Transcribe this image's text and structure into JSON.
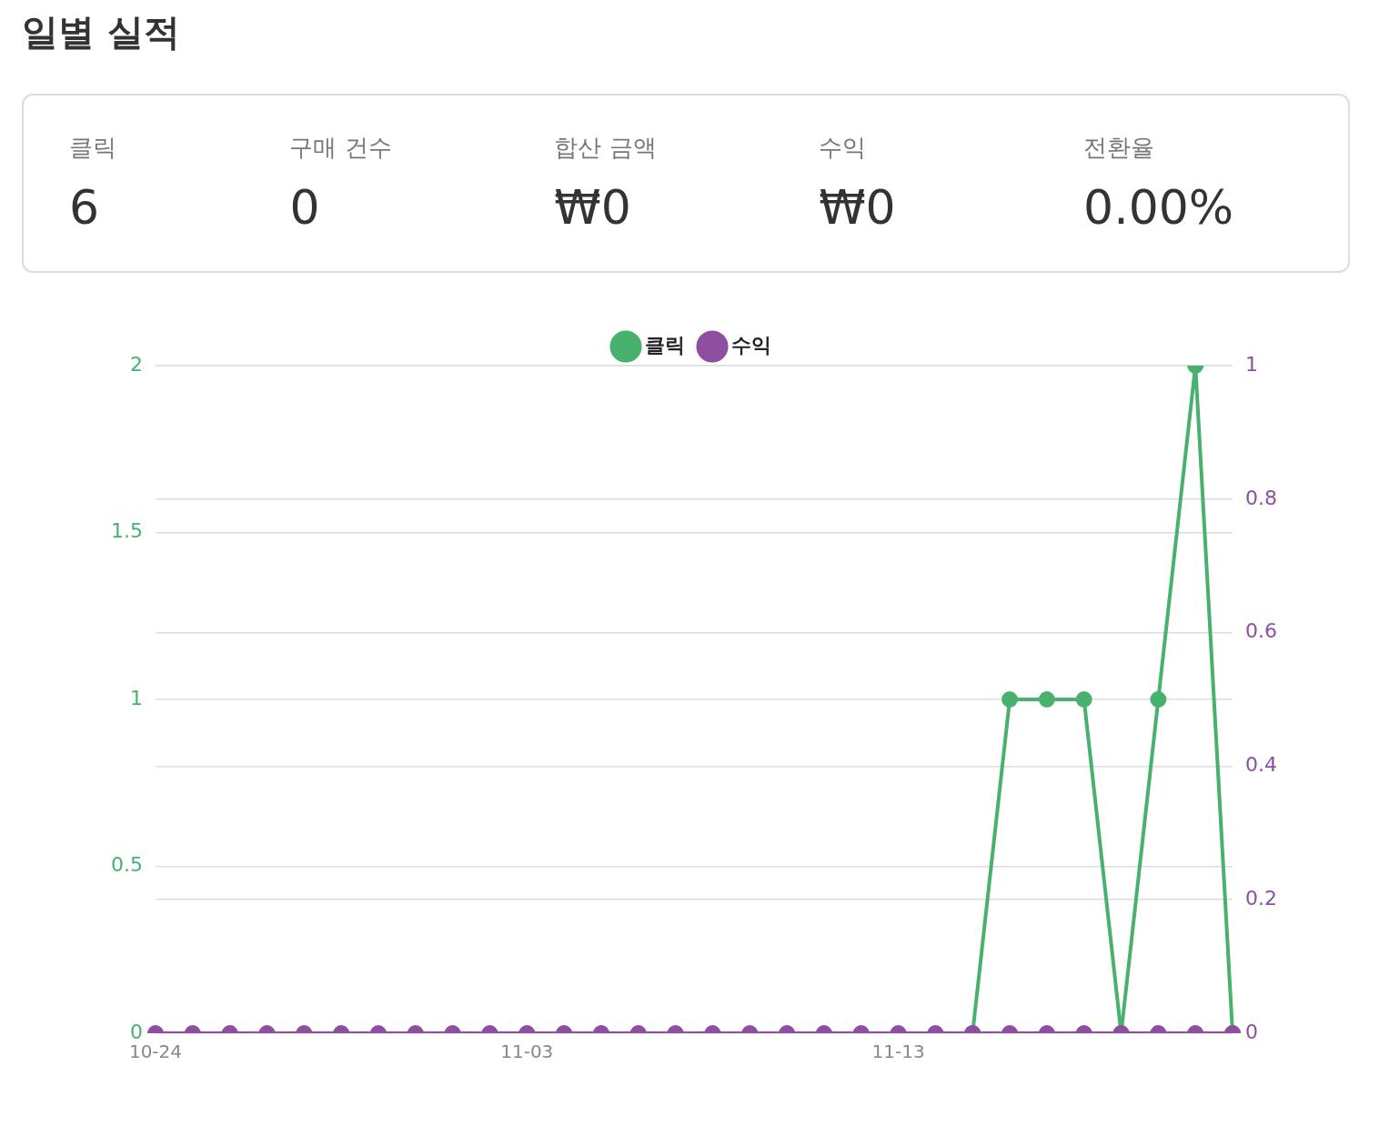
{
  "chart_data": [
    {
      "type": "other",
      "title": "일별 실적",
      "categories": [
        "클릭",
        "구매 건수",
        "합산 금액",
        "수익",
        "전환율"
      ],
      "value_labels": [
        "6",
        "0",
        "₩0",
        "₩0",
        "0.00%"
      ]
    },
    {
      "type": "line",
      "categories": [
        "10-24",
        null,
        null,
        null,
        null,
        null,
        null,
        null,
        null,
        null,
        "11-03",
        null,
        null,
        null,
        null,
        null,
        null,
        null,
        null,
        null,
        "11-13",
        null,
        null,
        null,
        null,
        null,
        null,
        null,
        null,
        null
      ],
      "series": [
        {
          "name": "클릭",
          "color": "#48b16e",
          "values": [
            null,
            null,
            null,
            null,
            null,
            null,
            null,
            null,
            null,
            null,
            null,
            null,
            null,
            null,
            null,
            null,
            null,
            null,
            null,
            null,
            null,
            null,
            0,
            1,
            1,
            1,
            0,
            1,
            2,
            0
          ]
        },
        {
          "name": "수익",
          "color": "#8e4fa0",
          "axis": "y2",
          "values": [
            0,
            0,
            0,
            0,
            0,
            0,
            0,
            0,
            0,
            0,
            0,
            0,
            0,
            0,
            0,
            0,
            0,
            0,
            0,
            0,
            0,
            0,
            0,
            0,
            0,
            0,
            0,
            0,
            0,
            0
          ]
        }
      ],
      "ylim": [
        0,
        2
      ],
      "yticks": [
        0,
        0.5,
        1,
        1.5,
        2
      ],
      "y2lim": [
        0,
        1
      ],
      "y2ticks": [
        0,
        0.2,
        0.4,
        0.6,
        0.8,
        1
      ],
      "grid": "y",
      "legend": "top",
      "marker": "circle",
      "line_style": "solid"
    }
  ]
}
